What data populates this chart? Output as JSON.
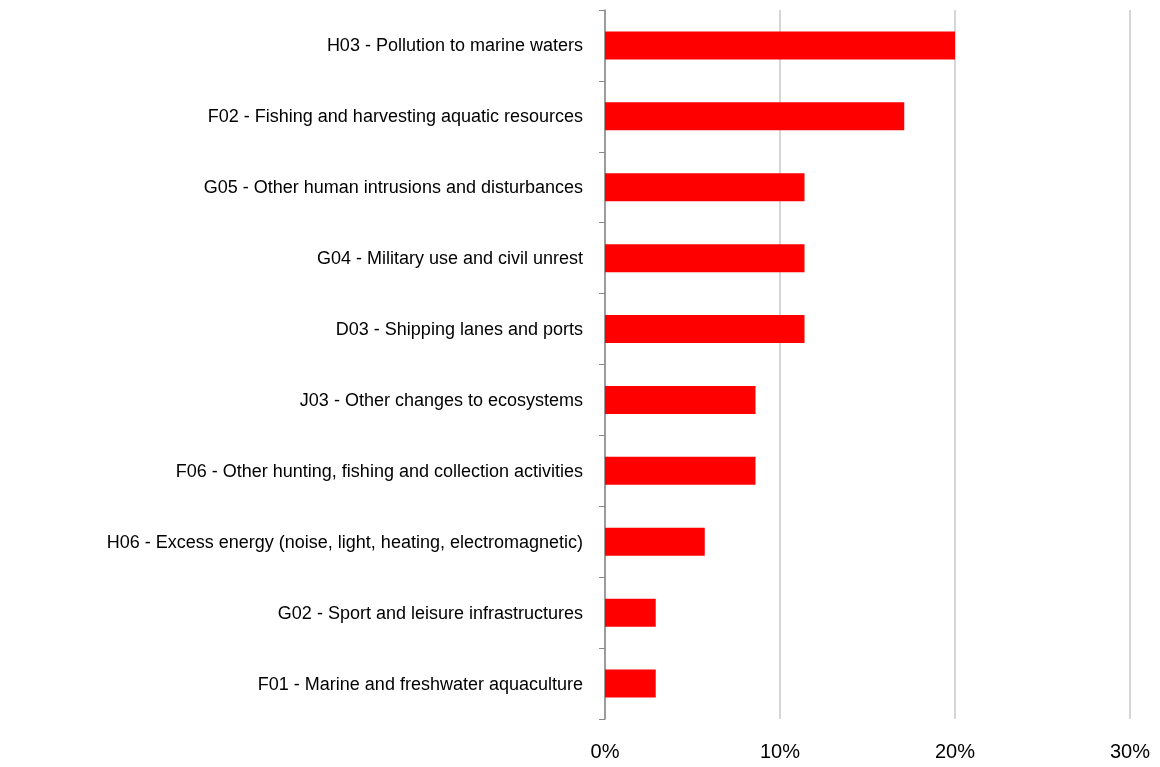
{
  "chart_data": {
    "type": "bar",
    "orientation": "horizontal",
    "categories": [
      "H03 - Pollution to marine waters",
      "F02 - Fishing and harvesting aquatic resources",
      "G05 - Other human intrusions and disturbances",
      "G04 - Military use and civil unrest",
      "D03 - Shipping lanes and ports",
      "J03 - Other changes to ecosystems",
      "F06 - Other hunting, fishing and collection activities",
      "H06 - Excess energy (noise, light, heating, electromagnetic)",
      "G02 - Sport and leisure infrastructures",
      "F01 - Marine and freshwater aquaculture"
    ],
    "values": [
      20.0,
      17.1,
      11.4,
      11.4,
      11.4,
      8.6,
      8.6,
      5.7,
      2.9,
      2.9
    ],
    "color": "#ff0000",
    "xlim": [
      0,
      30
    ],
    "xticks": [
      {
        "value": 0,
        "label": "0%"
      },
      {
        "value": 10,
        "label": "10%"
      },
      {
        "value": 20,
        "label": "20%"
      },
      {
        "value": 30,
        "label": "30%"
      }
    ],
    "grid": "x"
  }
}
